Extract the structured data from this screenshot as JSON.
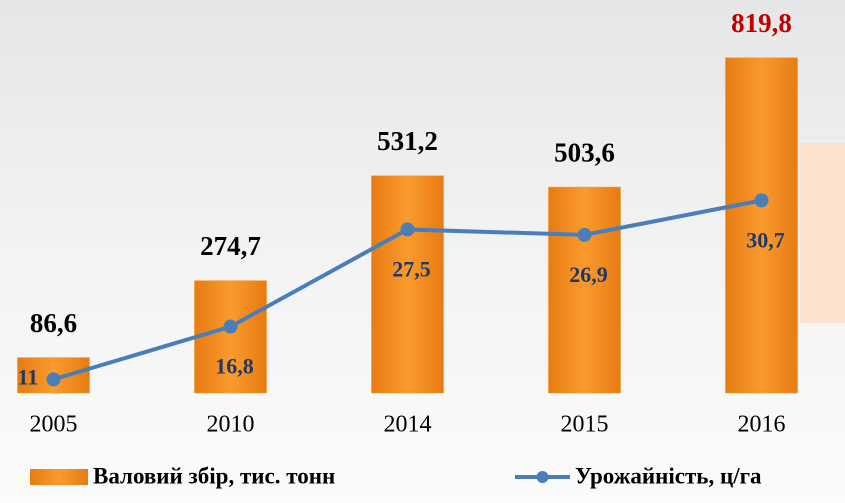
{
  "chart_data": {
    "type": "bar-line",
    "categories": [
      "2005",
      "2010",
      "2014",
      "2015",
      "2016"
    ],
    "series": [
      {
        "name": "Валовий збір, тис. тонн",
        "type": "bar",
        "color": "#f7941d",
        "values": [
          86.6,
          274.7,
          531.2,
          503.6,
          819.8
        ],
        "value_labels": [
          "86,6",
          "274,7",
          "531,2",
          "503,6",
          "819,8"
        ],
        "value_label_colors": [
          "#000000",
          "#000000",
          "#000000",
          "#000000",
          "#c00000"
        ]
      },
      {
        "name": "Урожайність, ц/га",
        "type": "line",
        "axis": "y2",
        "color": "#4a7ebb",
        "values": [
          11,
          16.8,
          27.5,
          26.9,
          30.7
        ],
        "value_labels": [
          "11",
          "16,8",
          "27,5",
          "26,9",
          "30,7"
        ],
        "value_label_color": "#1f3864"
      }
    ],
    "ylim": [
      0,
      900
    ],
    "y2lim": [
      9.5,
      50
    ],
    "legend": "bottom"
  }
}
